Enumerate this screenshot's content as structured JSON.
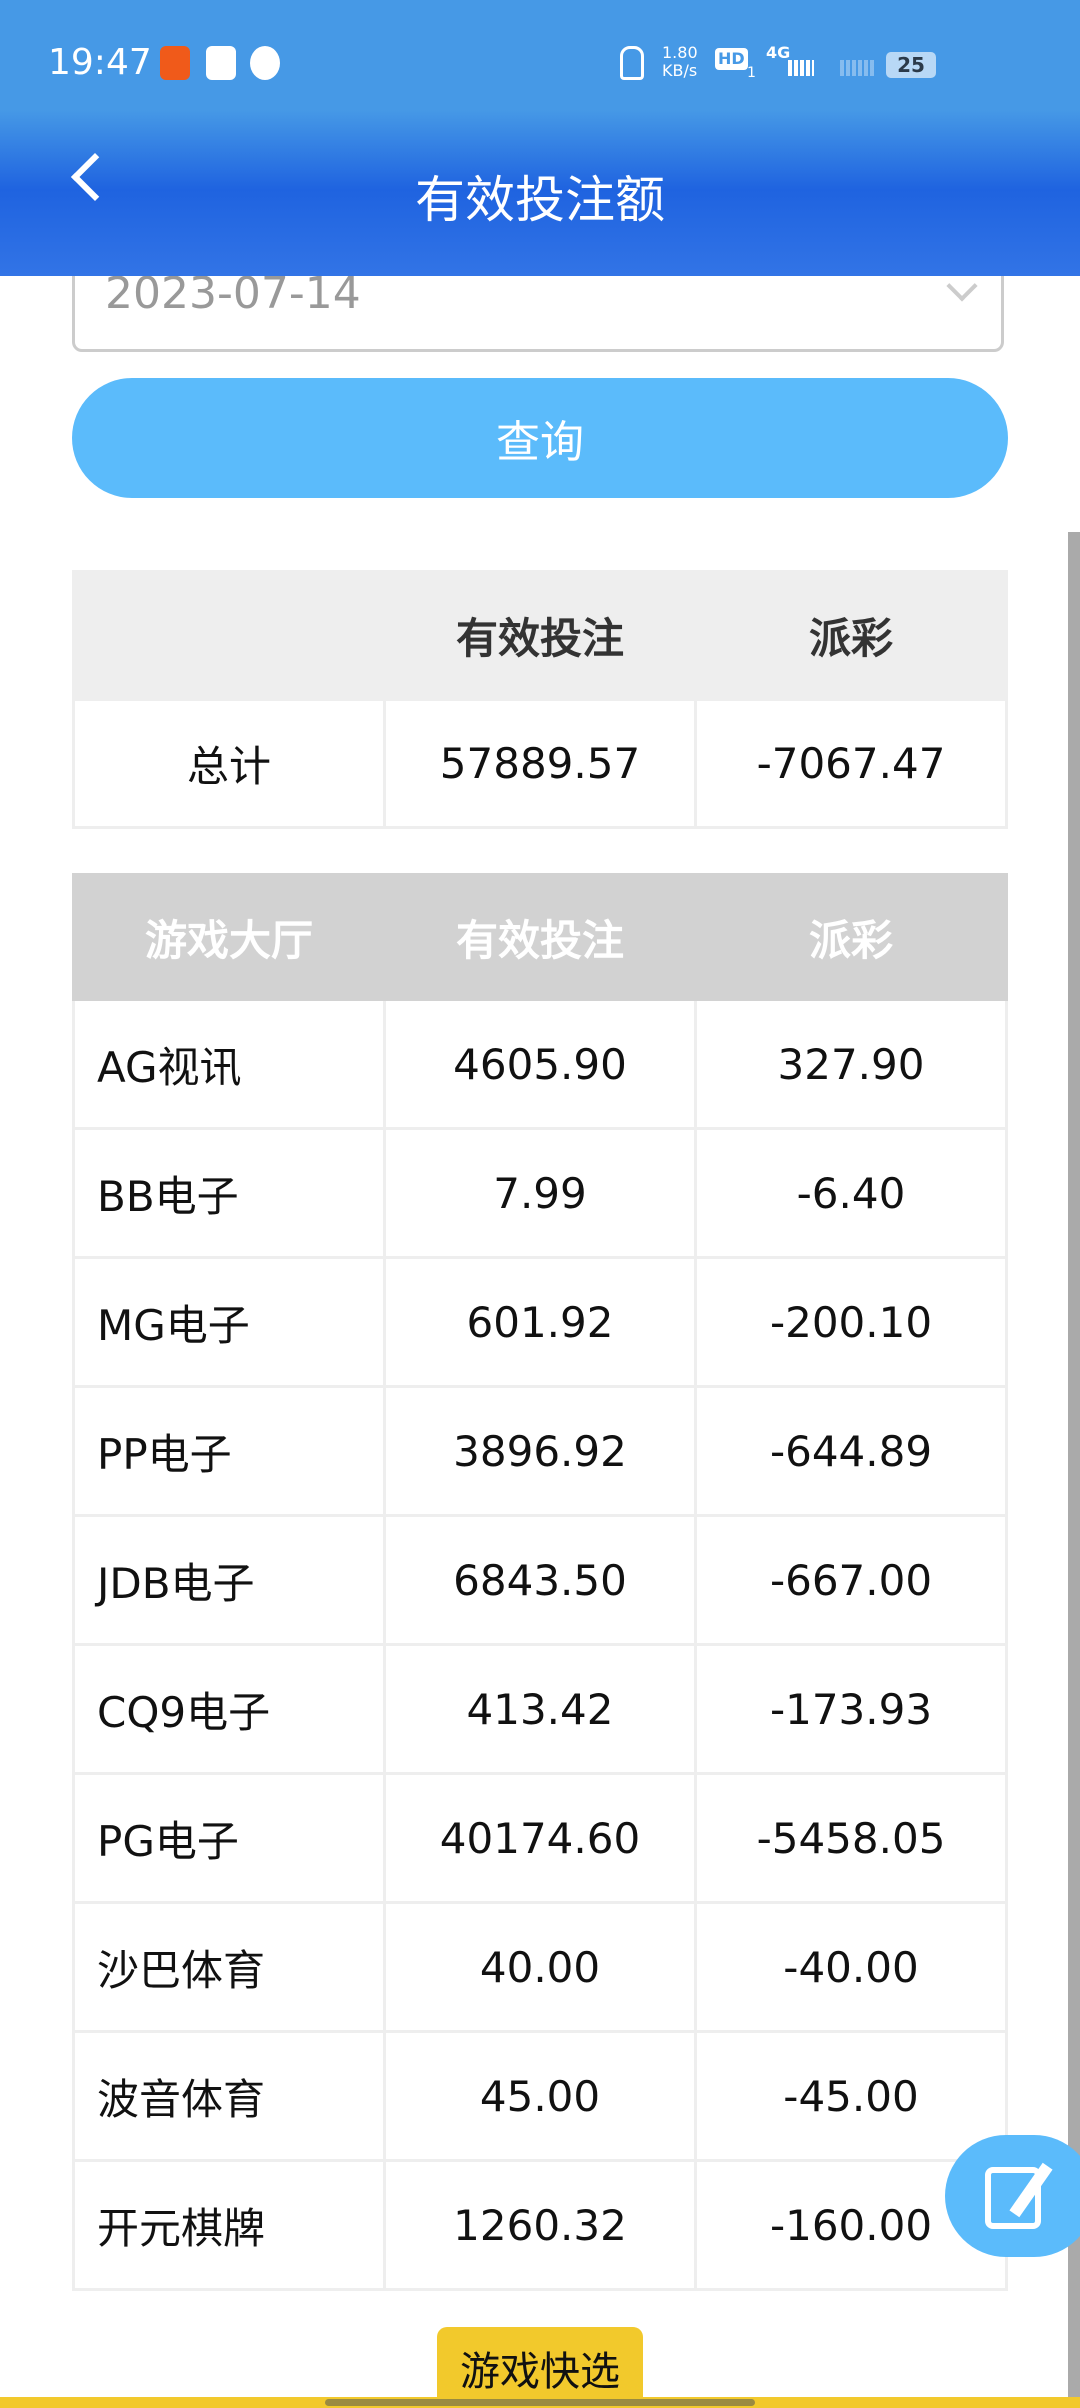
{
  "status_bar": {
    "time": "19:47",
    "net_speed": "1.80",
    "net_unit": "KB/s",
    "hd": "HD",
    "sim": "1",
    "network": "4G",
    "battery": "25"
  },
  "header": {
    "title": "有效投注额"
  },
  "filter": {
    "date": "2023-07-14",
    "query_label": "查询"
  },
  "summary": {
    "headers": [
      "",
      "有效投注",
      "派彩"
    ],
    "row": {
      "label": "总计",
      "bet": "57889.57",
      "payout": "-7067.47"
    }
  },
  "games": {
    "headers": [
      "游戏大厅",
      "有效投注",
      "派彩"
    ],
    "rows": [
      {
        "name": "AG视讯",
        "bet": "4605.90",
        "payout": "327.90"
      },
      {
        "name": "BB电子",
        "bet": "7.99",
        "payout": "-6.40"
      },
      {
        "name": "MG电子",
        "bet": "601.92",
        "payout": "-200.10"
      },
      {
        "name": "PP电子",
        "bet": "3896.92",
        "payout": "-644.89"
      },
      {
        "name": "JDB电子",
        "bet": "6843.50",
        "payout": "-667.00"
      },
      {
        "name": "CQ9电子",
        "bet": "413.42",
        "payout": "-173.93"
      },
      {
        "name": "PG电子",
        "bet": "40174.60",
        "payout": "-5458.05"
      },
      {
        "name": "沙巴体育",
        "bet": "40.00",
        "payout": "-40.00"
      },
      {
        "name": "波音体育",
        "bet": "45.00",
        "payout": "-45.00"
      },
      {
        "name": "开元棋牌",
        "bet": "1260.32",
        "payout": "-160.00"
      }
    ]
  },
  "quick_select_label": "游戏快选",
  "colors": {
    "header": "#1f63e0",
    "button": "#5bbbfb",
    "quick": "#f2c92c"
  }
}
